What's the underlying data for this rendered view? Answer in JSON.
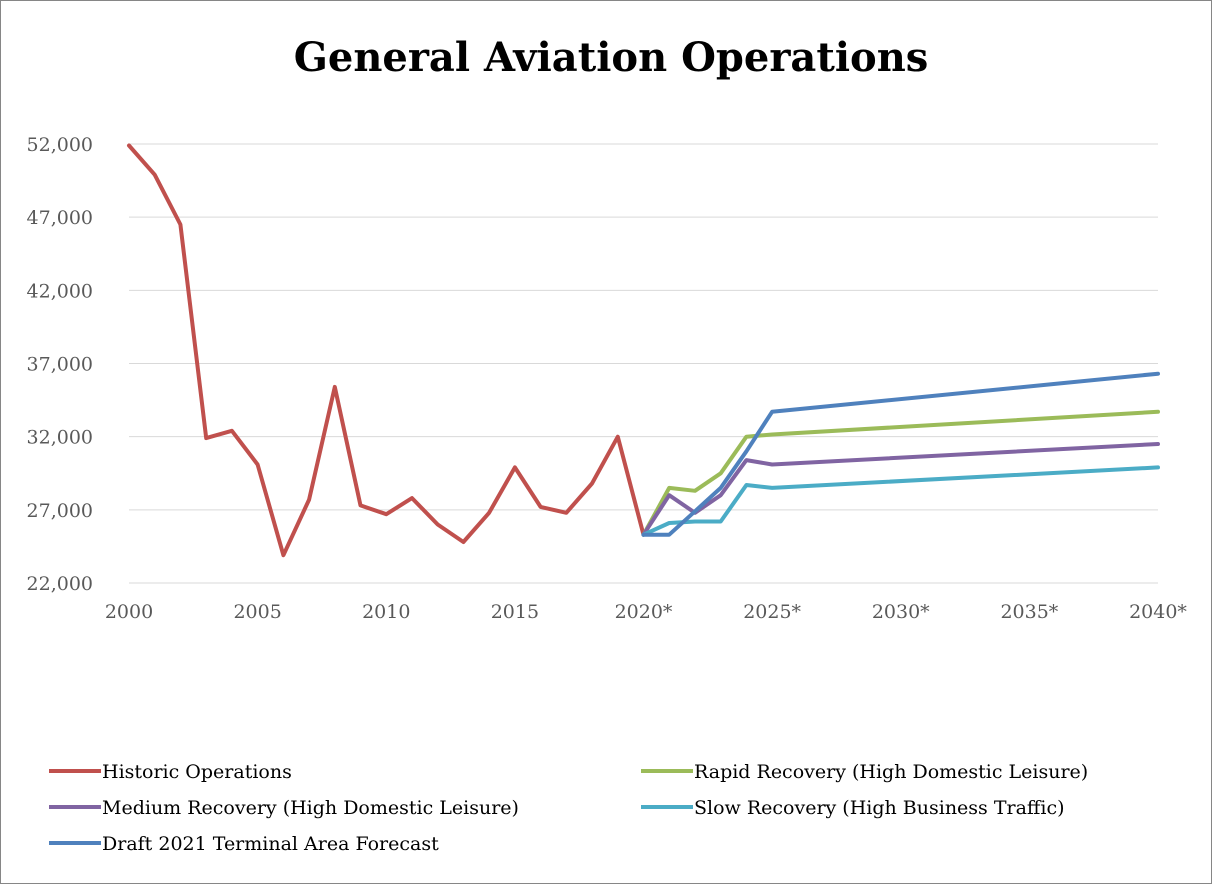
{
  "chart_data": {
    "type": "line",
    "title": "General Aviation Operations",
    "xlabel": "",
    "ylabel": "",
    "grid": true,
    "legend_position": "bottom",
    "x": [
      2000,
      2001,
      2002,
      2003,
      2004,
      2005,
      2006,
      2007,
      2008,
      2009,
      2010,
      2011,
      2012,
      2013,
      2014,
      2015,
      2016,
      2017,
      2018,
      2019,
      2020,
      2021,
      2022,
      2023,
      2024,
      2025,
      2026,
      2027,
      2028,
      2029,
      2030,
      2031,
      2032,
      2033,
      2034,
      2035,
      2036,
      2037,
      2038,
      2039,
      2040
    ],
    "xlim": [
      2000,
      2040
    ],
    "ylim": [
      22000,
      52000
    ],
    "x_ticks": [
      {
        "value": 2000,
        "label": "2000"
      },
      {
        "value": 2005,
        "label": "2005"
      },
      {
        "value": 2010,
        "label": "2010"
      },
      {
        "value": 2015,
        "label": "2015"
      },
      {
        "value": 2020,
        "label": "2020*"
      },
      {
        "value": 2025,
        "label": "2025*"
      },
      {
        "value": 2030,
        "label": "2030*"
      },
      {
        "value": 2035,
        "label": "2035*"
      },
      {
        "value": 2040,
        "label": "2040*"
      }
    ],
    "y_ticks": [
      {
        "value": 22000,
        "label": "22,000"
      },
      {
        "value": 27000,
        "label": "27,000"
      },
      {
        "value": 32000,
        "label": "32,000"
      },
      {
        "value": 37000,
        "label": "37,000"
      },
      {
        "value": 42000,
        "label": "42,000"
      },
      {
        "value": 47000,
        "label": "47,000"
      },
      {
        "value": 52000,
        "label": "52,000"
      }
    ],
    "series": [
      {
        "name": "Historic Operations",
        "color": "#c0504d",
        "points": [
          [
            2000,
            51900
          ],
          [
            2001,
            49900
          ],
          [
            2002,
            46500
          ],
          [
            2003,
            31900
          ],
          [
            2004,
            32400
          ],
          [
            2005,
            30100
          ],
          [
            2006,
            23900
          ],
          [
            2007,
            27700
          ],
          [
            2008,
            35400
          ],
          [
            2009,
            27300
          ],
          [
            2010,
            26700
          ],
          [
            2011,
            27800
          ],
          [
            2012,
            26000
          ],
          [
            2013,
            24800
          ],
          [
            2014,
            26800
          ],
          [
            2015,
            29900
          ],
          [
            2016,
            27200
          ],
          [
            2017,
            26800
          ],
          [
            2018,
            28800
          ],
          [
            2019,
            32000
          ],
          [
            2020,
            25300
          ]
        ]
      },
      {
        "name": "Rapid Recovery (High Domestic Leisure)",
        "color": "#9bbb59",
        "points": [
          [
            2020,
            25300
          ],
          [
            2021,
            28500
          ],
          [
            2022,
            28300
          ],
          [
            2023,
            29500
          ],
          [
            2024,
            32000
          ],
          [
            2025,
            32150
          ],
          [
            2040,
            33700
          ]
        ]
      },
      {
        "name": "Medium Recovery (High Domestic Leisure)",
        "color": "#8064a2",
        "points": [
          [
            2020,
            25300
          ],
          [
            2021,
            28000
          ],
          [
            2022,
            26800
          ],
          [
            2023,
            28000
          ],
          [
            2024,
            30400
          ],
          [
            2025,
            30100
          ],
          [
            2040,
            31500
          ]
        ]
      },
      {
        "name": "Slow Recovery (High Business Traffic)",
        "color": "#4bacc6",
        "points": [
          [
            2020,
            25300
          ],
          [
            2021,
            26100
          ],
          [
            2022,
            26200
          ],
          [
            2023,
            26200
          ],
          [
            2024,
            28700
          ],
          [
            2025,
            28500
          ],
          [
            2040,
            29900
          ]
        ]
      },
      {
        "name": "Draft 2021 Terminal Area Forecast",
        "color": "#4f81bd",
        "points": [
          [
            2020,
            25300
          ],
          [
            2021,
            25300
          ],
          [
            2022,
            26900
          ],
          [
            2023,
            28500
          ],
          [
            2024,
            31000
          ],
          [
            2025,
            33700
          ],
          [
            2040,
            36300
          ]
        ]
      }
    ]
  }
}
